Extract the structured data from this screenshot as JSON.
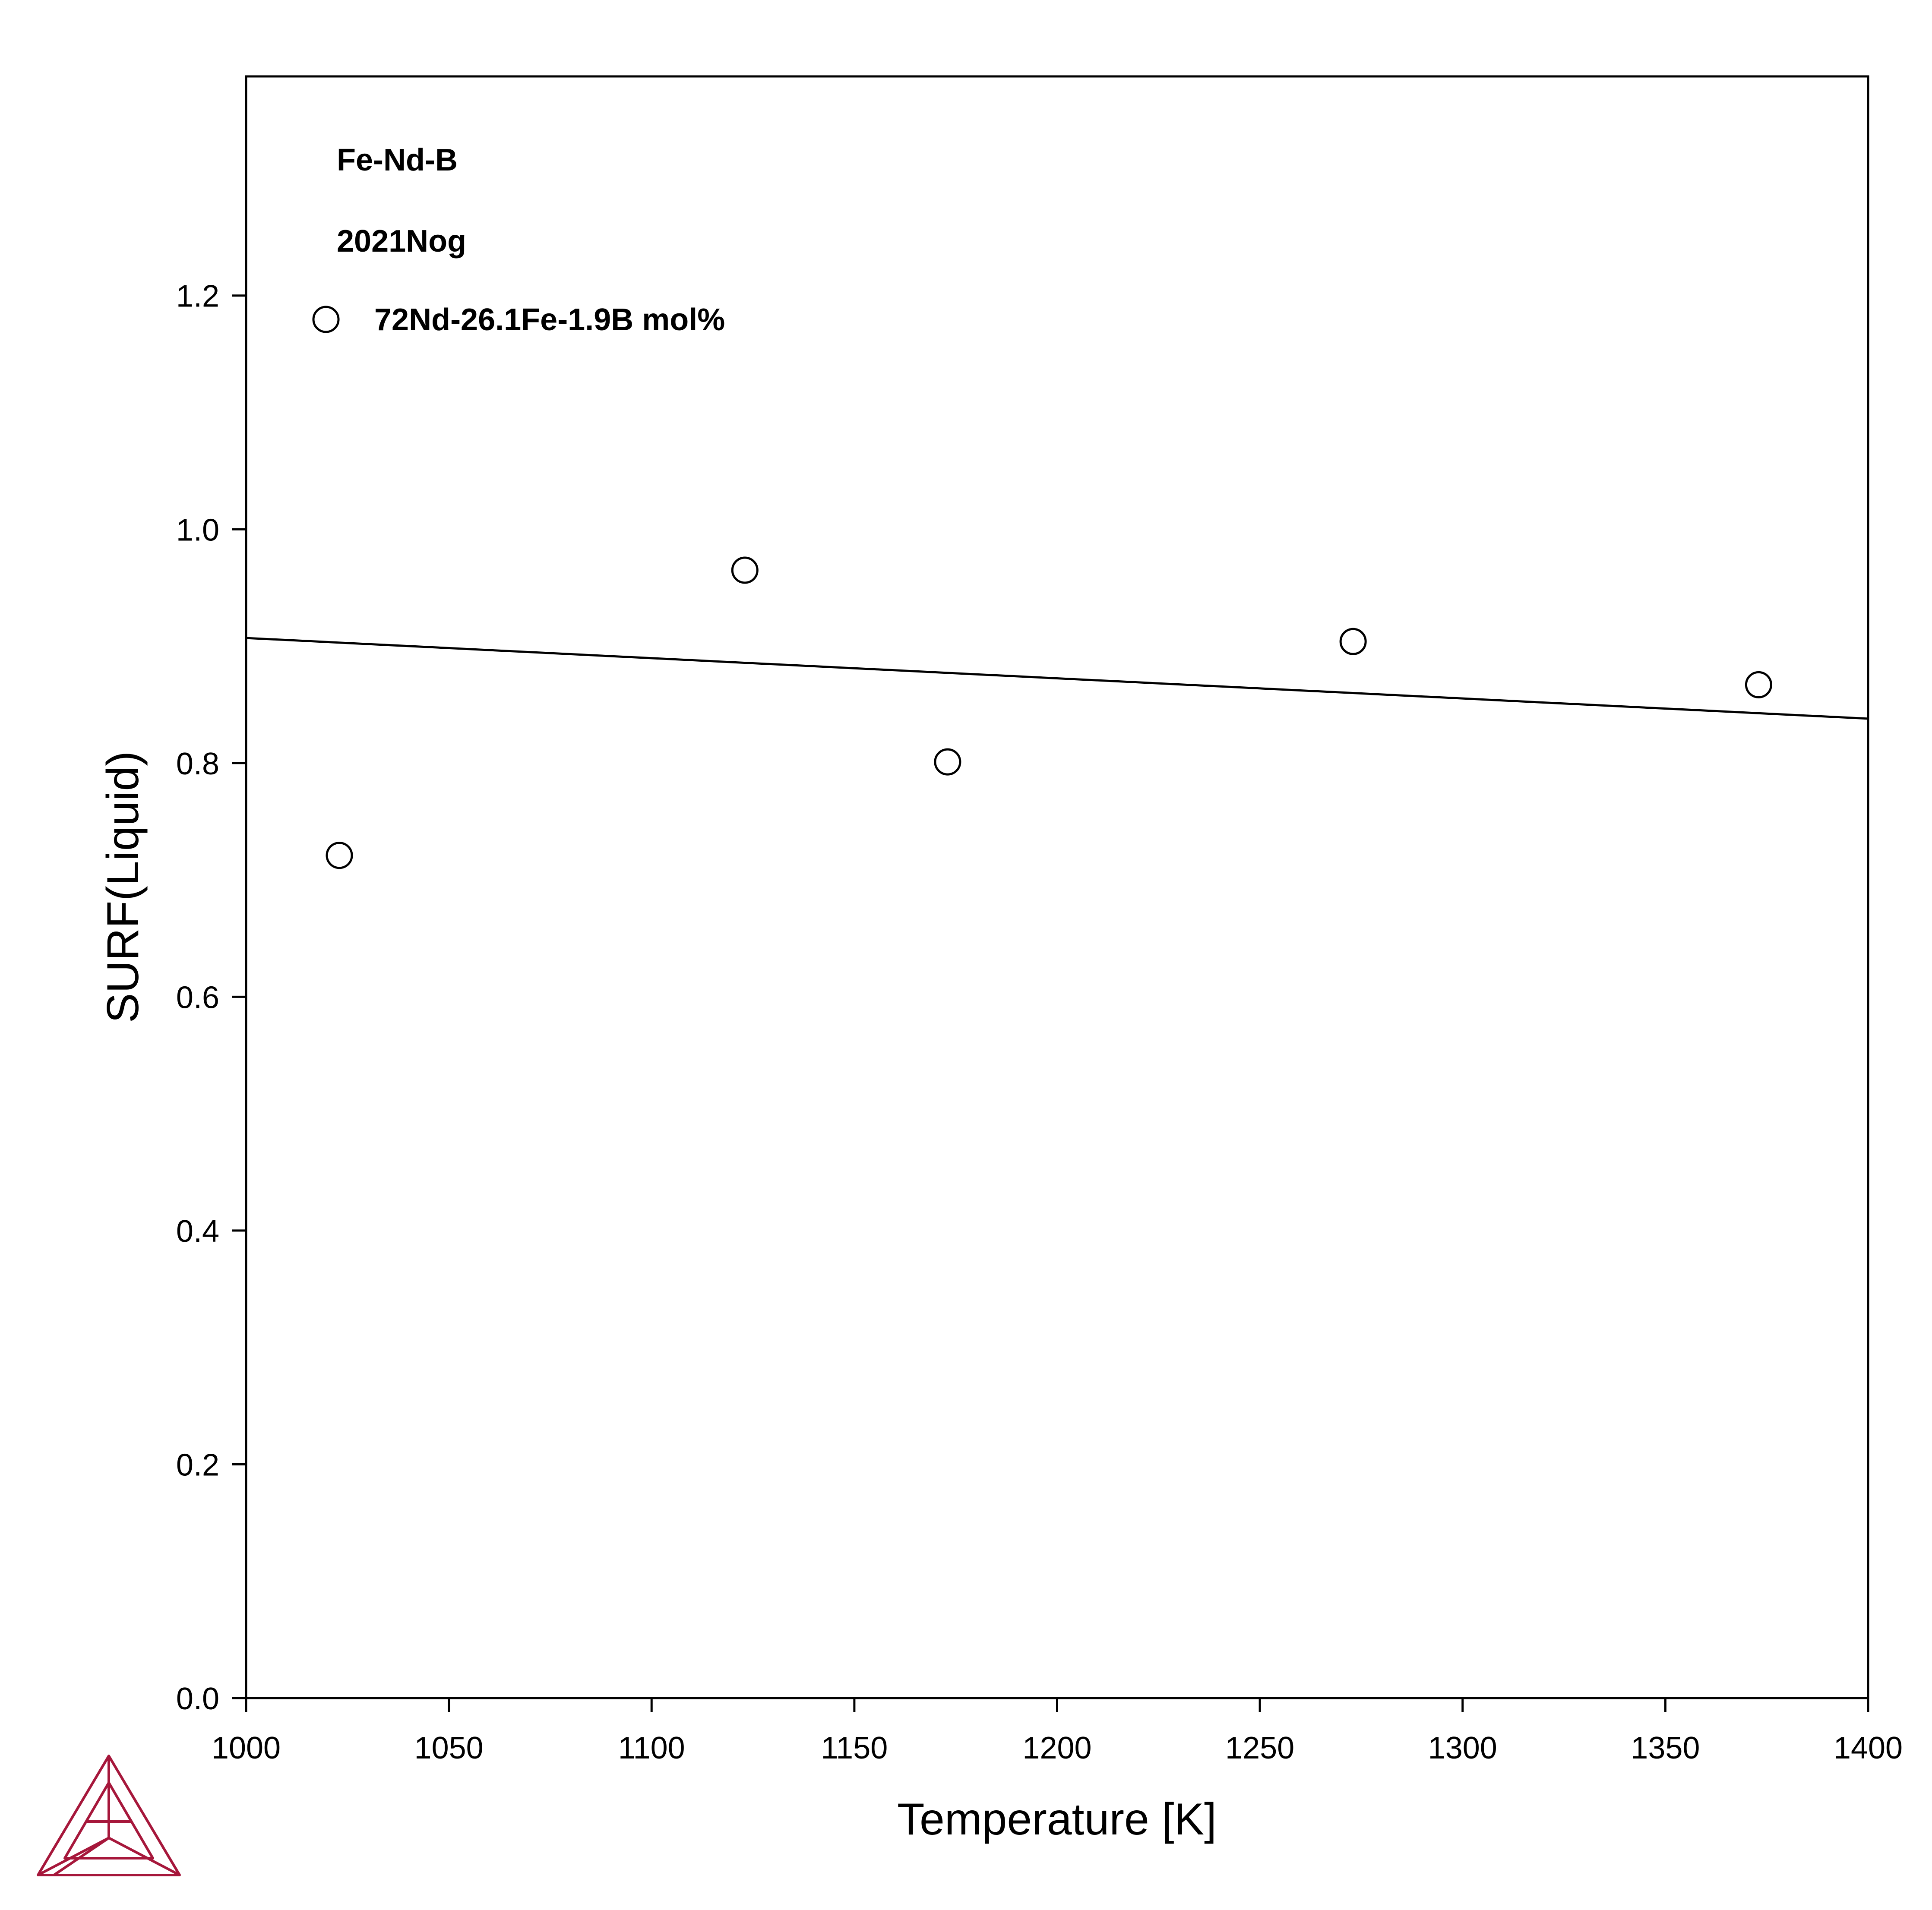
{
  "chart_data": {
    "type": "scatter",
    "title": "",
    "xlabel": "Temperature [K]",
    "ylabel": "SURF(Liquid)",
    "xlim": [
      1000,
      1400
    ],
    "ylim": [
      0.0,
      1.3875
    ],
    "x_ticks": [
      "1000",
      "1050",
      "1100",
      "1150",
      "1200",
      "1250",
      "1300",
      "1350",
      "1400"
    ],
    "x_tick_values": [
      1000,
      1050,
      1100,
      1150,
      1200,
      1250,
      1300,
      1350,
      1400
    ],
    "y_ticks": [
      "0.0",
      "0.2",
      "0.4",
      "0.6",
      "0.8",
      "1.0",
      "1.2"
    ],
    "y_tick_values": [
      0.0,
      0.2,
      0.4,
      0.6,
      0.8,
      1.0,
      1.2
    ],
    "grid": false,
    "annotations": [
      "Fe-Nd-B",
      "2021Nog"
    ],
    "legend_position": "top-left",
    "series": [
      {
        "name": "",
        "kind": "line",
        "color": "#000000",
        "x": [
          1000,
          1400
        ],
        "y": [
          0.907,
          0.838
        ]
      },
      {
        "name": "72Nd-26.1Fe-1.9B mol%",
        "kind": "scatter",
        "marker": "open-circle",
        "color": "#000000",
        "x": [
          1023,
          1123,
          1173,
          1273,
          1373
        ],
        "y": [
          0.721,
          0.965,
          0.801,
          0.904,
          0.867
        ]
      }
    ]
  },
  "logo": {
    "name": "thermo-calc-logo",
    "color": "#a6173b"
  }
}
